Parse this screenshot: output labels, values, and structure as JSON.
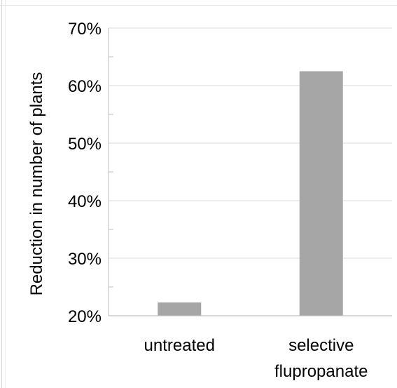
{
  "chart_data": {
    "type": "bar",
    "categories": [
      [
        "untreated"
      ],
      [
        "selective",
        "flupropanate"
      ]
    ],
    "values": [
      22.3,
      62.5
    ],
    "value_unit": "%",
    "ylabel": "Reduction in number of plants",
    "xlabel": "",
    "title": "",
    "ylim": [
      20,
      70
    ],
    "y_ticks": [
      20,
      30,
      40,
      50,
      60,
      70
    ],
    "y_tick_labels": [
      "20%",
      "30%",
      "40%",
      "50%",
      "60%",
      "70%"
    ],
    "grid": true,
    "legend": "none",
    "colors": {
      "bar": "#a6a6a6",
      "grid": "#d9d9d9",
      "axis": "#bfbfbf"
    }
  }
}
